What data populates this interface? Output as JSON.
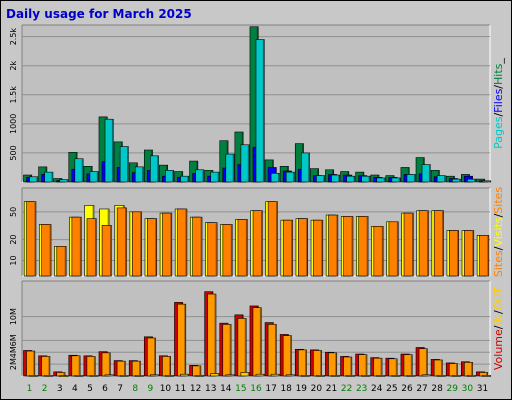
{
  "chart_data": {
    "type": "bar",
    "title": "Daily usage for March 2025",
    "categories": [
      "1",
      "2",
      "3",
      "4",
      "5",
      "6",
      "7",
      "8",
      "9",
      "10",
      "11",
      "12",
      "13",
      "14",
      "15",
      "16",
      "17",
      "18",
      "19",
      "20",
      "21",
      "22",
      "23",
      "24",
      "25",
      "26",
      "27",
      "28",
      "29",
      "30",
      "31"
    ],
    "weekend_days": [
      1,
      2,
      8,
      9,
      15,
      16,
      22,
      23,
      29,
      30
    ],
    "panels": [
      {
        "name": "hits-files-pages",
        "y_ticks": [
          "500",
          "1000",
          "1.5k",
          "2k",
          "2.5k"
        ],
        "tick_values": [
          500,
          1000,
          1500,
          2000,
          2500
        ],
        "ylim": [
          0,
          2700
        ],
        "right_label": [
          "Pages",
          "/",
          "Files",
          "/",
          "Hits",
          "_"
        ],
        "right_label_colors": [
          "#00c8c8",
          "#000000",
          "#0000ff",
          "#000000",
          "#008040",
          "#000000"
        ],
        "series": [
          {
            "name": "Hits",
            "color": "#008040",
            "values": [
              120,
              260,
              60,
              510,
              270,
              1120,
              690,
              330,
              550,
              290,
              180,
              360,
              200,
              710,
              860,
              2670,
              380,
              270,
              660,
              230,
              210,
              180,
              170,
              120,
              110,
              250,
              420,
              200,
              100,
              130,
              50
            ]
          },
          {
            "name": "Files",
            "color": "#0000ff",
            "values": [
              80,
              130,
              25,
              220,
              140,
              350,
              250,
              160,
              200,
              100,
              80,
              150,
              100,
              240,
              300,
              600,
              250,
              190,
              220,
              110,
              130,
              120,
              110,
              80,
              80,
              130,
              140,
              90,
              60,
              100,
              20
            ]
          },
          {
            "name": "Pages",
            "color": "#00c8c8",
            "values": [
              90,
              170,
              40,
              400,
              180,
              1080,
              610,
              260,
              450,
              200,
              100,
              210,
              170,
              480,
              640,
              2450,
              150,
              170,
              500,
              110,
              120,
              100,
              100,
              70,
              70,
              130,
              300,
              110,
              50,
              50,
              20
            ]
          }
        ]
      },
      {
        "name": "sites-visits",
        "y_ticks": [
          "10",
          "20",
          "50"
        ],
        "tick_values": [
          10,
          20,
          50
        ],
        "log_scale": true,
        "ylim": [
          6,
          110
        ],
        "right_label": [
          "Sites",
          "/",
          "Visits",
          "/",
          "Sites"
        ],
        "right_label_colors": [
          "#ff8000",
          "#000000",
          "#ffff00",
          "#000000",
          "#ff8000"
        ],
        "series": [
          {
            "name": "Visits",
            "color": "#ffff00",
            "values": [
              70,
              33,
              16,
              42,
              62,
              55,
              62,
              50,
              40,
              48,
              55,
              42,
              35,
              33,
              39,
              52,
              70,
              38,
              40,
              38,
              45,
              43,
              43,
              31,
              36,
              48,
              52,
              52,
              27,
              27,
              23
            ]
          },
          {
            "name": "Sites",
            "color": "#ff8000",
            "values": [
              70,
              33,
              16,
              42,
              40,
              32,
              57,
              50,
              40,
              48,
              55,
              42,
              35,
              33,
              39,
              52,
              70,
              38,
              40,
              38,
              45,
              43,
              43,
              31,
              36,
              48,
              52,
              52,
              27,
              27,
              23
            ]
          }
        ]
      },
      {
        "name": "volume",
        "y_ticks": [
          "2M",
          "4M",
          "6M",
          "10M"
        ],
        "tick_values": [
          2,
          4,
          6,
          10
        ],
        "ylim": [
          0,
          16
        ],
        "unit": "M",
        "right_label": [
          "Volume",
          "/",
          "IN",
          "/",
          "OUT"
        ],
        "right_label_colors": [
          "#cc0000",
          "#000000",
          "#ffcc00",
          "#000000",
          "#ffcc00"
        ],
        "series": [
          {
            "name": "Volume",
            "color": "#cc0000",
            "values": [
              4.3,
              3.4,
              0.7,
              3.5,
              3.4,
              4.1,
              2.6,
              2.6,
              6.6,
              3.4,
              12.4,
              1.8,
              14.2,
              8.9,
              10.3,
              11.8,
              9.0,
              7.0,
              4.5,
              4.4,
              4.0,
              3.3,
              3.7,
              3.1,
              3.0,
              3.7,
              4.8,
              2.8,
              2.2,
              2.4,
              0.7
            ]
          },
          {
            "name": "IN",
            "color": "#ff9900",
            "values": [
              4.2,
              3.3,
              0.6,
              3.4,
              3.3,
              3.9,
              2.5,
              2.5,
              6.4,
              3.3,
              12.1,
              1.7,
              13.8,
              8.7,
              9.7,
              11.5,
              8.7,
              6.8,
              4.4,
              4.3,
              3.9,
              3.2,
              3.6,
              3.0,
              2.9,
              3.6,
              4.6,
              2.7,
              2.1,
              2.3,
              0.6
            ]
          },
          {
            "name": "OUT",
            "color": "#ffcc00",
            "values": [
              0.1,
              0.1,
              0.05,
              0.1,
              0.1,
              0.2,
              0.1,
              0.1,
              0.2,
              0.1,
              0.3,
              0.1,
              0.4,
              0.2,
              0.6,
              0.3,
              0.3,
              0.2,
              0.1,
              0.1,
              0.1,
              0.1,
              0.1,
              0.1,
              0.1,
              0.1,
              0.2,
              0.1,
              0.1,
              0.1,
              0.1
            ]
          }
        ]
      }
    ]
  }
}
